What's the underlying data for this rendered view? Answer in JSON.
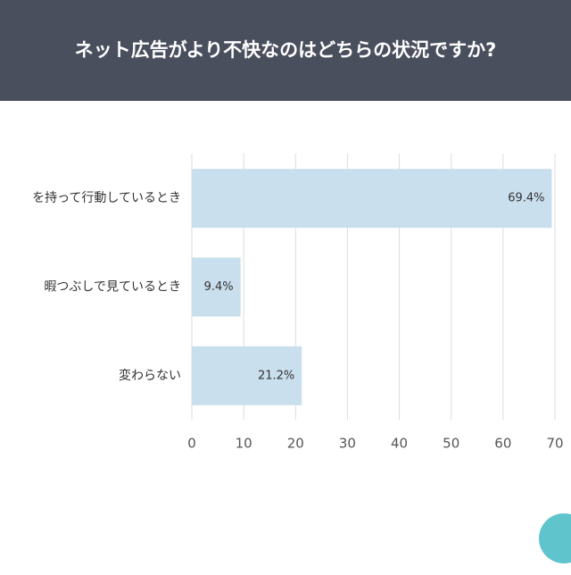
{
  "chart_data": {
    "type": "bar",
    "orientation": "horizontal",
    "title": "ネット広告がより不快なのはどちらの状況ですか?",
    "categories": [
      "を持って行動しているとき",
      "暇つぶしで見ているとき",
      "変わらない"
    ],
    "values": [
      69.4,
      9.4,
      21.2
    ],
    "value_labels": [
      "69.4%",
      "9.4%",
      "21.2%"
    ],
    "color": "#c9dfee",
    "xlim": [
      0,
      70
    ],
    "xticks": [
      0,
      10,
      20,
      30,
      40,
      50,
      60,
      70
    ],
    "grid": true
  }
}
